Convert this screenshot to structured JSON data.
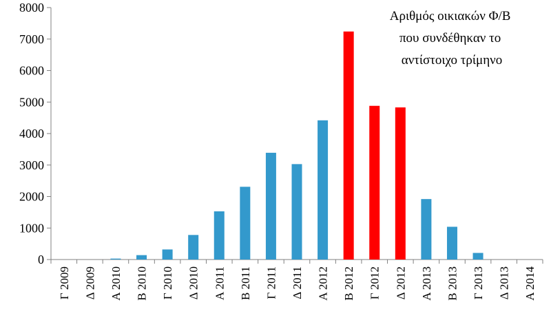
{
  "chart_data": {
    "type": "bar",
    "title_lines": [
      "Αριθμός οικιακών Φ/Β",
      "που συνδέθηκαν το",
      "αντίστοιχο τρίμηνο"
    ],
    "categories": [
      "Γ 2009",
      "Δ 2009",
      "Α 2010",
      "Β 2010",
      "Γ 2010",
      "Δ 2010",
      "Α 2011",
      "Β 2011",
      "Γ 2011",
      "Δ 2011",
      "Α 2012",
      "Β 2012",
      "Γ 2012",
      "Δ 2012",
      "Α 2013",
      "Β 2013",
      "Γ 2013",
      "Δ 2013",
      "Α 2014"
    ],
    "values": [
      0,
      0,
      30,
      140,
      320,
      780,
      1530,
      2310,
      3390,
      3030,
      4420,
      7240,
      4880,
      4830,
      1920,
      1040,
      210,
      0,
      0
    ],
    "bar_colors": [
      "#3399cc",
      "#3399cc",
      "#3399cc",
      "#3399cc",
      "#3399cc",
      "#3399cc",
      "#3399cc",
      "#3399cc",
      "#3399cc",
      "#3399cc",
      "#3399cc",
      "#ff0000",
      "#ff0000",
      "#ff0000",
      "#3399cc",
      "#3399cc",
      "#3399cc",
      "#3399cc",
      "#3399cc"
    ],
    "ylim": [
      0,
      8000
    ],
    "yticks": [
      "0",
      "1000",
      "2000",
      "3000",
      "4000",
      "5000",
      "6000",
      "7000",
      "8000"
    ],
    "grid": false,
    "xlabel": "",
    "ylabel": ""
  }
}
